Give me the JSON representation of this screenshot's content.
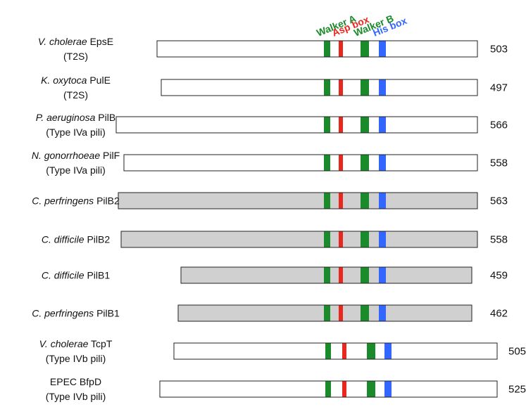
{
  "motifs": [
    {
      "label": "Walker A",
      "color": "#1a8a2a"
    },
    {
      "label": "Asp box",
      "color": "#e8281e"
    },
    {
      "label": "Walker B",
      "color": "#1a8a2a"
    },
    {
      "label": "His box",
      "color": "#3366ff"
    }
  ],
  "rows": [
    {
      "species": "V. cholerae",
      "protein": "EpsE",
      "system": "(T2S)",
      "length": 503
    },
    {
      "species": "K. oxytoca",
      "protein": "PulE",
      "system": "(T2S)",
      "length": 497
    },
    {
      "species": "P. aeruginosa",
      "protein": "PilB",
      "system": "(Type IVa pili)",
      "length": 566
    },
    {
      "species": "N. gonorrhoeae",
      "protein": "PilF",
      "system": "(Type IVa pili)",
      "length": 558
    },
    {
      "species": "C. perfringens",
      "protein": "PilB2",
      "length": 563
    },
    {
      "species": "C. difficile",
      "protein": "PilB2",
      "length": 558
    },
    {
      "species": "C. difficile",
      "protein": "PilB1",
      "length": 459
    },
    {
      "species": "C. perfringens",
      "protein": "PilB1",
      "length": 462
    },
    {
      "species": "V. cholerae",
      "protein": "TcpT",
      "system": "(Type IVb pili)",
      "length": 505
    },
    {
      "protein": "EPEC BfpD",
      "system": "(Type IVb pili)",
      "length": 525
    }
  ]
}
